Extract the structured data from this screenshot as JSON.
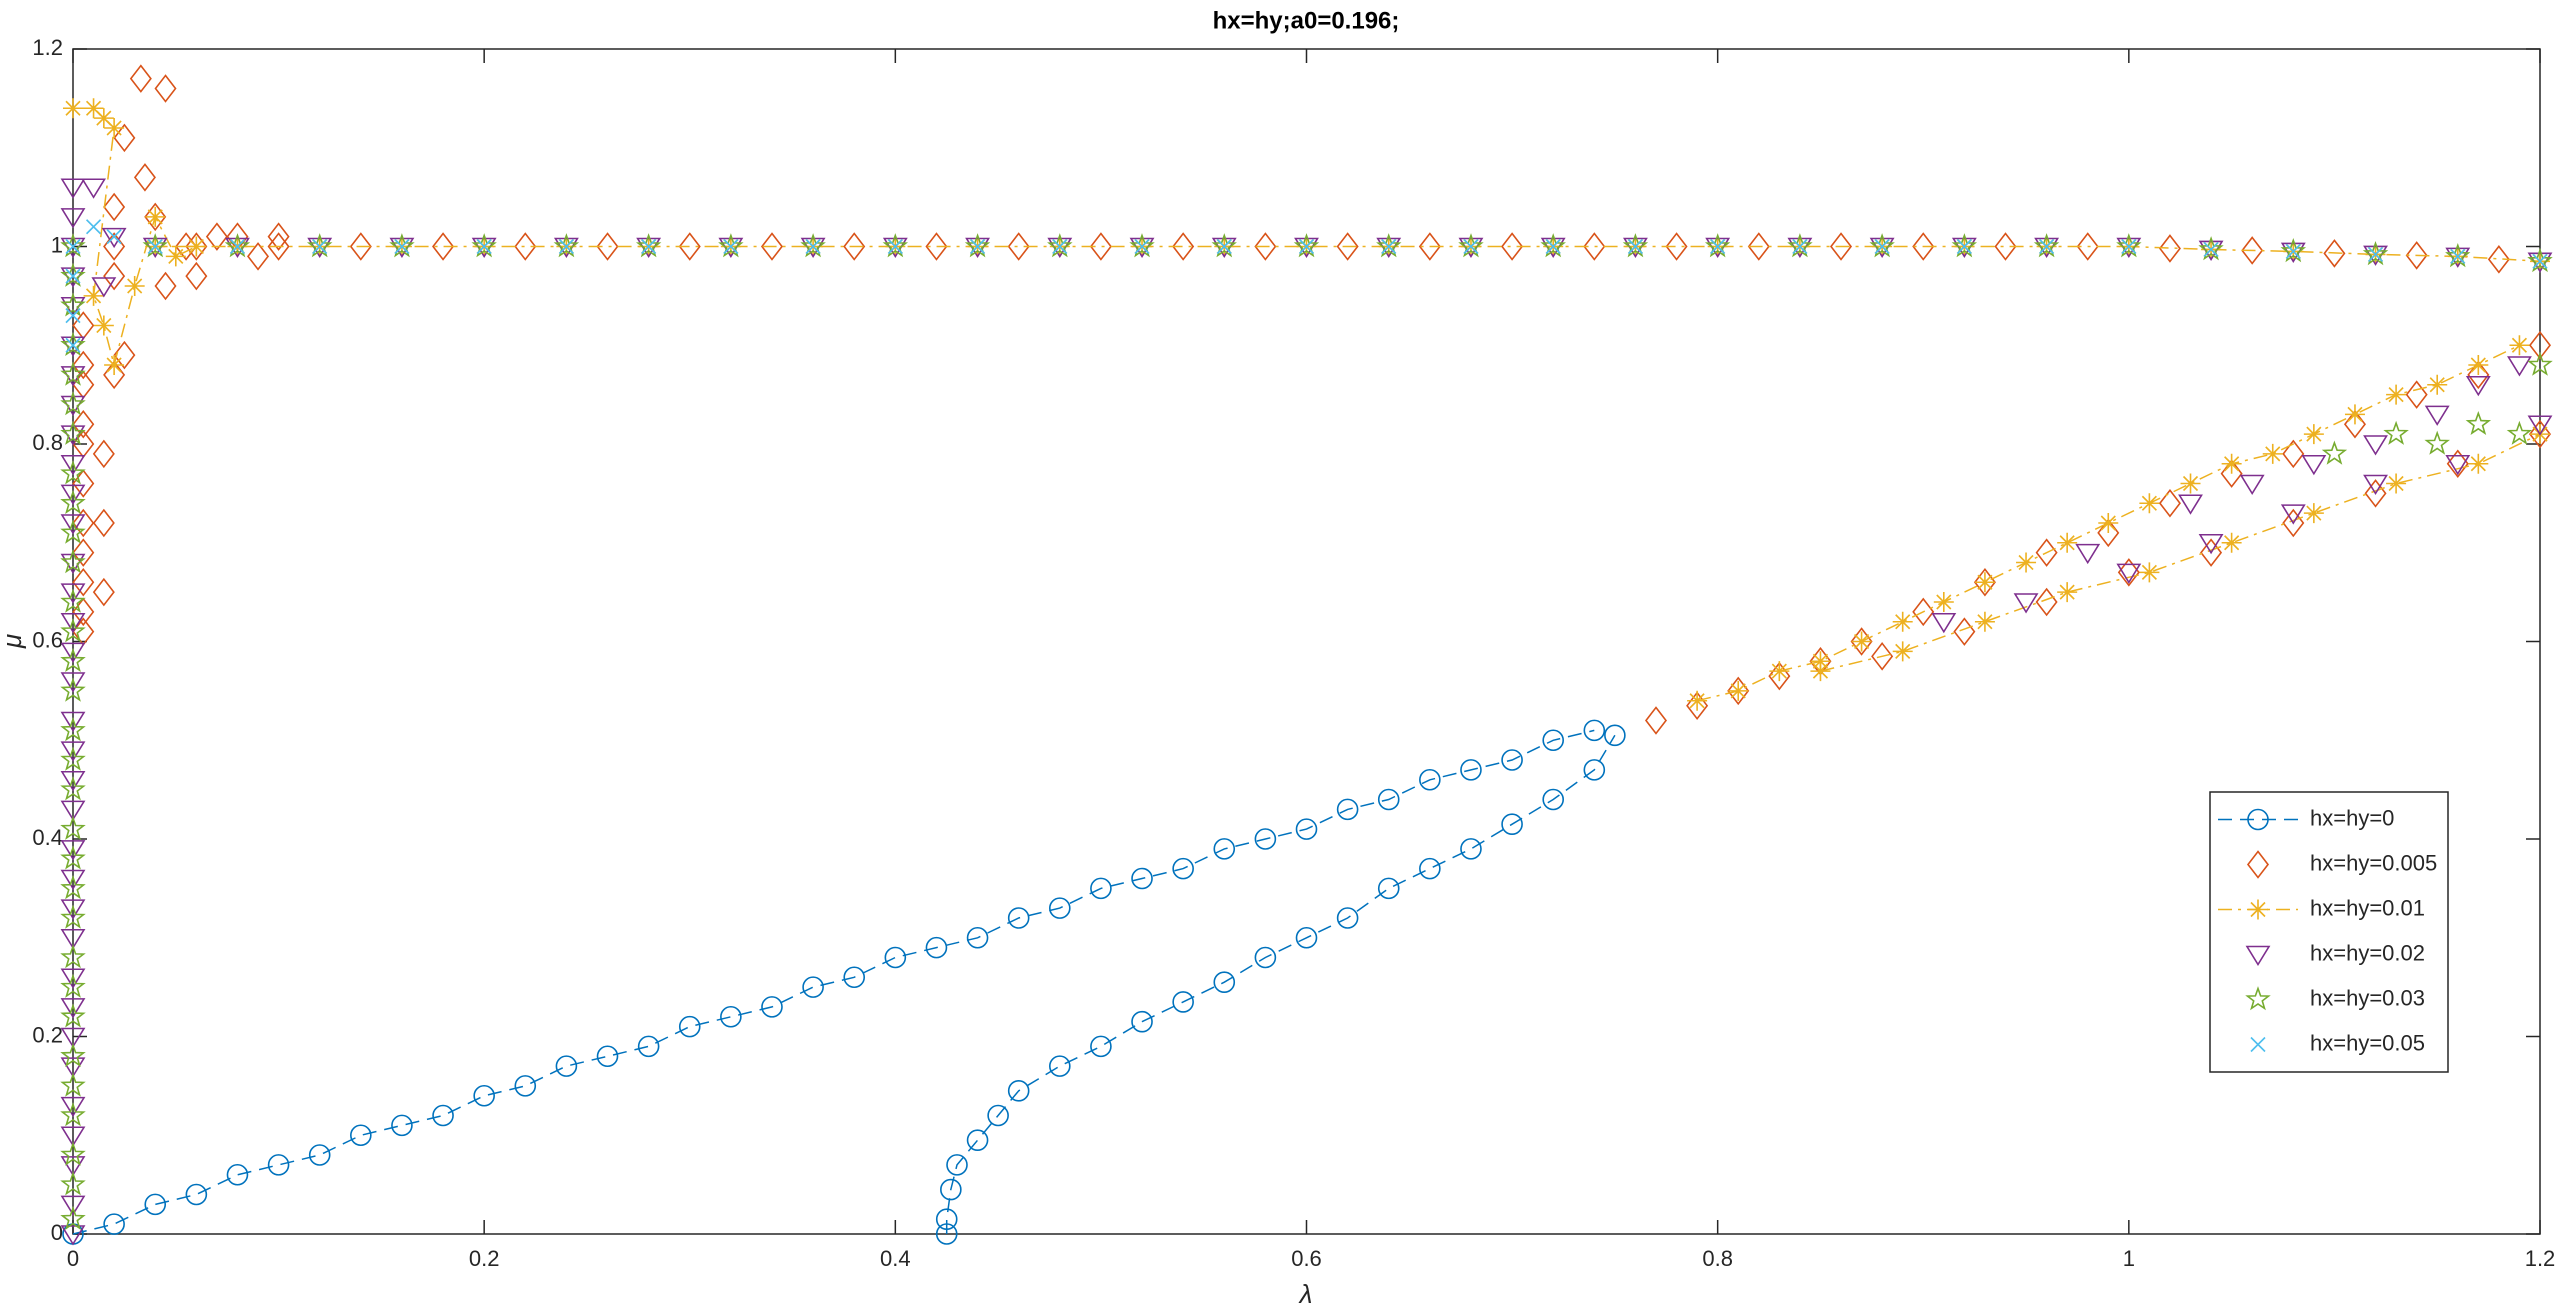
{
  "chart_data": {
    "type": "line",
    "title": "hx=hy;a0=0.196;",
    "x_label": "λ",
    "y_label": "μ",
    "xlim": [
      0,
      1.2
    ],
    "ylim": [
      0,
      1.2
    ],
    "xticks": [
      0,
      0.2,
      0.4,
      0.6,
      0.8,
      1,
      1.2
    ],
    "yticks": [
      0,
      0.2,
      0.4,
      0.6,
      0.8,
      1,
      1.2
    ],
    "grid": false,
    "legend": "southeast",
    "series": [
      {
        "name": "hx=hy=0",
        "color": "#0072BD",
        "marker": "circle",
        "linestyle": "dashed",
        "x": [
          0,
          0.02,
          0.04,
          0.06,
          0.08,
          0.1,
          0.12,
          0.14,
          0.16,
          0.18,
          0.2,
          0.22,
          0.24,
          0.26,
          0.28,
          0.3,
          0.32,
          0.34,
          0.36,
          0.38,
          0.4,
          0.42,
          0.44,
          0.46,
          0.48,
          0.5,
          0.52,
          0.54,
          0.56,
          0.58,
          0.6,
          0.62,
          0.64,
          0.66,
          0.68,
          0.7,
          0.72,
          0.74,
          null,
          0.425,
          0.425,
          0.427,
          0.43,
          0.44,
          0.45,
          0.46,
          0.48,
          0.5,
          0.52,
          0.54,
          0.56,
          0.58,
          0.6,
          0.62,
          0.64,
          0.66,
          0.68,
          0.7,
          0.72,
          0.74,
          0.75
        ],
        "values": [
          0,
          0.01,
          0.03,
          0.04,
          0.06,
          0.07,
          0.08,
          0.1,
          0.11,
          0.12,
          0.14,
          0.15,
          0.17,
          0.18,
          0.19,
          0.21,
          0.22,
          0.23,
          0.25,
          0.26,
          0.28,
          0.29,
          0.3,
          0.32,
          0.33,
          0.35,
          0.36,
          0.37,
          0.39,
          0.4,
          0.41,
          0.43,
          0.44,
          0.46,
          0.47,
          0.48,
          0.5,
          0.51,
          null,
          0,
          0.015,
          0.045,
          0.07,
          0.095,
          0.12,
          0.145,
          0.17,
          0.19,
          0.215,
          0.235,
          0.255,
          0.28,
          0.3,
          0.32,
          0.35,
          0.37,
          0.39,
          0.415,
          0.44,
          0.47,
          0.505
        ]
      },
      {
        "name": "hx=hy=0.005",
        "color": "#D95319",
        "marker": "diamond",
        "linestyle": "none",
        "x": [
          0.005,
          0.005,
          0.005,
          0.005,
          0.005,
          0.005,
          0.005,
          0.005,
          0.005,
          0.005,
          0.005,
          0.015,
          0.015,
          0.015,
          0.02,
          0.025,
          0.02,
          0.02,
          0.025,
          0.033,
          0.045,
          0.035,
          0.04,
          0.045,
          0.055,
          0.06,
          0.07,
          0.08,
          0.09,
          0.1,
          0.02,
          0.06,
          0.1,
          0.14,
          0.18,
          0.22,
          0.26,
          0.3,
          0.34,
          0.38,
          0.42,
          0.46,
          0.5,
          0.54,
          0.58,
          0.62,
          0.66,
          0.7,
          0.74,
          0.78,
          0.82,
          0.86,
          0.9,
          0.94,
          0.98,
          1.02,
          1.06,
          1.1,
          1.14,
          1.18,
          0.77,
          0.79,
          0.81,
          0.83,
          0.85,
          0.87,
          0.9,
          0.93,
          0.96,
          0.99,
          1.02,
          1.05,
          1.08,
          1.11,
          1.14,
          1.17,
          1.2,
          0.88,
          0.92,
          0.96,
          1,
          1.04,
          1.08,
          1.12,
          1.16,
          1.2
        ],
        "values": [
          0.61,
          0.63,
          0.66,
          0.69,
          0.72,
          0.76,
          0.8,
          0.82,
          0.86,
          0.88,
          0.92,
          0.65,
          0.72,
          0.79,
          0.87,
          0.89,
          0.97,
          1.04,
          1.11,
          1.17,
          1.16,
          1.07,
          1.03,
          0.96,
          1,
          0.97,
          1.01,
          1.01,
          0.99,
          1.01,
          1,
          1,
          1,
          1,
          1,
          1,
          1,
          1,
          1,
          1,
          1,
          1,
          1,
          1,
          1,
          1,
          1,
          1,
          1,
          1,
          1,
          1,
          1,
          1,
          1,
          0.998,
          0.996,
          0.993,
          0.991,
          0.987,
          0.52,
          0.535,
          0.55,
          0.565,
          0.58,
          0.6,
          0.63,
          0.66,
          0.69,
          0.71,
          0.74,
          0.77,
          0.79,
          0.82,
          0.85,
          0.87,
          0.9,
          0.585,
          0.61,
          0.64,
          0.67,
          0.69,
          0.72,
          0.75,
          0.78,
          0.81
        ]
      },
      {
        "name": "hx=hy=0.01",
        "color": "#EDB120",
        "marker": "asterisk",
        "linestyle": "dashdot",
        "x": [
          0,
          0.01,
          0.015,
          0.02,
          0.01,
          0.015,
          0.02,
          0.03,
          0.04,
          0.05,
          0.06,
          0.04,
          0.08,
          0.12,
          0.16,
          0.2,
          0.24,
          0.28,
          0.32,
          0.36,
          0.4,
          0.44,
          0.48,
          0.52,
          0.56,
          0.6,
          0.64,
          0.68,
          0.72,
          0.76,
          0.8,
          0.84,
          0.88,
          0.92,
          0.96,
          1,
          1.04,
          1.08,
          1.12,
          1.16,
          1.2,
          null,
          0.79,
          0.81,
          0.83,
          0.85,
          0.87,
          0.89,
          0.91,
          0.93,
          0.95,
          0.97,
          0.99,
          1.01,
          1.03,
          1.05,
          1.07,
          1.09,
          1.11,
          1.13,
          1.15,
          1.17,
          1.19,
          null,
          0.85,
          0.89,
          0.93,
          0.97,
          1.01,
          1.05,
          1.09,
          1.13,
          1.17,
          1.2
        ],
        "values": [
          1.14,
          1.14,
          1.13,
          1.12,
          0.95,
          0.92,
          0.88,
          0.96,
          1.03,
          0.99,
          1,
          1,
          1,
          1,
          1,
          1,
          1,
          1,
          1,
          1,
          1,
          1,
          1,
          1,
          1,
          1,
          1,
          1,
          1,
          1,
          1,
          1,
          1,
          1,
          1,
          1,
          0.997,
          0.995,
          0.992,
          0.99,
          0.985,
          null,
          0.54,
          0.55,
          0.57,
          0.58,
          0.6,
          0.62,
          0.64,
          0.66,
          0.68,
          0.7,
          0.72,
          0.74,
          0.76,
          0.78,
          0.79,
          0.81,
          0.83,
          0.85,
          0.86,
          0.88,
          0.9,
          null,
          0.57,
          0.59,
          0.62,
          0.65,
          0.67,
          0.7,
          0.73,
          0.76,
          0.78,
          0.81
        ]
      },
      {
        "name": "hx=hy=0.02",
        "color": "#7E2F8E",
        "marker": "triangle-down",
        "linestyle": "none",
        "x": [
          0,
          0,
          0,
          0,
          0,
          0,
          0,
          0,
          0,
          0,
          0,
          0,
          0,
          0,
          0,
          0,
          0,
          0,
          0,
          0,
          0,
          0,
          0,
          0,
          0,
          0,
          0,
          0,
          0,
          0,
          0,
          0,
          0,
          0,
          0.01,
          0.015,
          0.02,
          0.04,
          0.08,
          0.12,
          0.16,
          0.2,
          0.24,
          0.28,
          0.32,
          0.36,
          0.4,
          0.44,
          0.48,
          0.52,
          0.56,
          0.6,
          0.64,
          0.68,
          0.72,
          0.76,
          0.8,
          0.84,
          0.88,
          0.92,
          0.96,
          1,
          1.04,
          1.08,
          1.12,
          1.16,
          1.2,
          0.91,
          0.95,
          0.98,
          1.03,
          1.06,
          1.09,
          1.12,
          1.15,
          1.17,
          1.19,
          1,
          1.04,
          1.08,
          1.12,
          1.16,
          1.2
        ],
        "values": [
          0,
          0.03,
          0.07,
          0.1,
          0.13,
          0.17,
          0.2,
          0.23,
          0.26,
          0.3,
          0.33,
          0.36,
          0.39,
          0.43,
          0.46,
          0.49,
          0.52,
          0.56,
          0.59,
          0.62,
          0.65,
          0.68,
          0.72,
          0.75,
          0.78,
          0.81,
          0.84,
          0.87,
          0.9,
          0.94,
          0.97,
          1,
          1.03,
          1.06,
          1.06,
          0.96,
          1.01,
          1,
          1,
          1,
          1,
          1,
          1,
          1,
          1,
          1,
          1,
          1,
          1,
          1,
          1,
          1,
          1,
          1,
          1,
          1,
          1,
          1,
          1,
          1,
          1,
          1,
          0.997,
          0.995,
          0.992,
          0.99,
          0.985,
          0.62,
          0.64,
          0.69,
          0.74,
          0.76,
          0.78,
          0.8,
          0.83,
          0.86,
          0.88,
          0.67,
          0.7,
          0.73,
          0.76,
          0.78,
          0.82
        ]
      },
      {
        "name": "hx=hy=0.03",
        "color": "#77AC30",
        "marker": "pentagram",
        "linestyle": "none",
        "x": [
          0,
          0,
          0,
          0,
          0,
          0,
          0,
          0,
          0,
          0,
          0,
          0,
          0,
          0,
          0,
          0,
          0,
          0,
          0,
          0,
          0,
          0,
          0,
          0,
          0,
          0,
          0,
          0,
          0,
          0,
          0,
          0.04,
          0.08,
          0.12,
          0.16,
          0.2,
          0.24,
          0.28,
          0.32,
          0.36,
          0.4,
          0.44,
          0.48,
          0.52,
          0.56,
          0.6,
          0.64,
          0.68,
          0.72,
          0.76,
          0.8,
          0.84,
          0.88,
          0.92,
          0.96,
          1,
          1.04,
          1.08,
          1.12,
          1.16,
          1.2,
          1.1,
          1.13,
          1.15,
          1.17,
          1.19,
          1.2
        ],
        "values": [
          0.015,
          0.05,
          0.08,
          0.12,
          0.15,
          0.18,
          0.22,
          0.25,
          0.28,
          0.32,
          0.35,
          0.38,
          0.41,
          0.45,
          0.48,
          0.51,
          0.55,
          0.58,
          0.61,
          0.64,
          0.68,
          0.71,
          0.74,
          0.77,
          0.81,
          0.84,
          0.87,
          0.9,
          0.94,
          0.97,
          1,
          1,
          1,
          1,
          1,
          1,
          1,
          1,
          1,
          1,
          1,
          1,
          1,
          1,
          1,
          1,
          1,
          1,
          1,
          1,
          1,
          1,
          1,
          1,
          1,
          1,
          0.997,
          0.995,
          0.992,
          0.99,
          0.985,
          0.79,
          0.81,
          0.8,
          0.82,
          0.81,
          0.88
        ]
      },
      {
        "name": "hx=hy=0.05",
        "color": "#4DBEEE",
        "marker": "x",
        "linestyle": "none",
        "x": [
          0,
          0,
          0,
          0,
          0.01,
          0.02,
          0.04,
          0.08,
          0.12,
          0.16,
          0.2,
          0.24,
          0.28,
          0.32,
          0.36,
          0.4,
          0.44,
          0.48,
          0.52,
          0.56,
          0.6,
          0.64,
          0.68,
          0.72,
          0.76,
          0.8,
          0.84,
          0.88,
          0.92,
          0.96,
          1,
          1.04,
          1.08,
          1.12,
          1.16,
          1.2
        ],
        "values": [
          0.9,
          0.93,
          0.97,
          1,
          1.02,
          1.01,
          1,
          1,
          1,
          1,
          1,
          1,
          1,
          1,
          1,
          1,
          1,
          1,
          1,
          1,
          1,
          1,
          1,
          1,
          1,
          1,
          1,
          1,
          1,
          1,
          1,
          0.997,
          0.995,
          0.992,
          0.99,
          0.985
        ]
      }
    ]
  }
}
